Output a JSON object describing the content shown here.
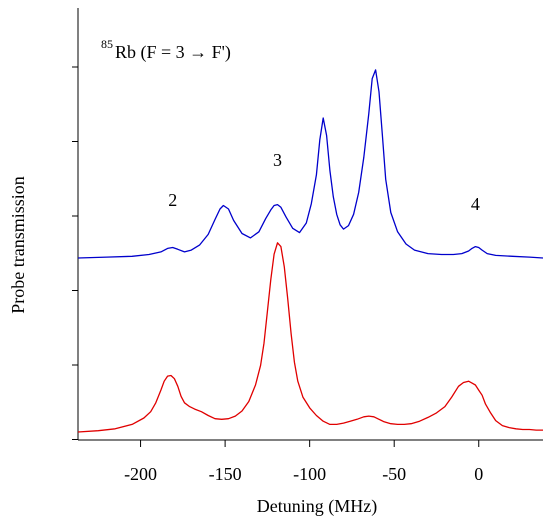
{
  "chart_data": {
    "type": "line",
    "title": "",
    "annotation": {
      "isotope_sup": "85",
      "label": "Rb (F = 3 → F')"
    },
    "xlabel": "Detuning (MHz)",
    "ylabel": "Probe transmission",
    "xlim": [
      -237,
      38
    ],
    "xticks": [
      -200,
      -150,
      -100,
      -50,
      0
    ],
    "xtick_labels": [
      "-200",
      "-150",
      "-100",
      "-50",
      "0"
    ],
    "yticks_count": 6,
    "grid": false,
    "legend": "none",
    "peak_labels": [
      {
        "text": "2",
        "x": -181
      },
      {
        "text": "3",
        "x": -119
      },
      {
        "text": "4",
        "x": -2
      }
    ],
    "series": [
      {
        "color": "#0000cc",
        "x": [
          -237,
          -220,
          -205,
          -195,
          -188,
          -184,
          -181,
          -178,
          -174,
          -170,
          -165,
          -160,
          -156,
          -153,
          -151,
          -148,
          -145,
          -140,
          -135,
          -130,
          -126,
          -123,
          -121,
          -119,
          -117,
          -114,
          -110,
          -106,
          -102,
          -99,
          -96,
          -94,
          -92,
          -90,
          -88,
          -86,
          -84,
          -82,
          -80,
          -77,
          -74,
          -71,
          -68,
          -65,
          -63,
          -61,
          -59,
          -57,
          -55,
          -52,
          -48,
          -43,
          -38,
          -30,
          -22,
          -15,
          -10,
          -6,
          -4,
          -2,
          0,
          2,
          5,
          10,
          20,
          30,
          38
        ],
        "y": [
          0.0,
          0.01,
          0.02,
          0.04,
          0.07,
          0.11,
          0.12,
          0.1,
          0.07,
          0.09,
          0.15,
          0.27,
          0.44,
          0.56,
          0.6,
          0.56,
          0.43,
          0.28,
          0.23,
          0.3,
          0.45,
          0.55,
          0.6,
          0.61,
          0.58,
          0.47,
          0.34,
          0.29,
          0.4,
          0.62,
          0.95,
          1.35,
          1.6,
          1.4,
          1.0,
          0.7,
          0.5,
          0.38,
          0.33,
          0.37,
          0.5,
          0.75,
          1.15,
          1.65,
          2.05,
          2.15,
          1.9,
          1.4,
          0.9,
          0.52,
          0.3,
          0.16,
          0.09,
          0.05,
          0.04,
          0.04,
          0.05,
          0.08,
          0.11,
          0.13,
          0.12,
          0.09,
          0.05,
          0.03,
          0.02,
          0.01,
          0.0
        ]
      },
      {
        "color": "#e00000",
        "x": [
          -237,
          -225,
          -215,
          -205,
          -198,
          -194,
          -191,
          -188,
          -186,
          -184,
          -182,
          -180,
          -178,
          -176,
          -174,
          -171,
          -168,
          -164,
          -160,
          -156,
          -152,
          -148,
          -144,
          -140,
          -136,
          -132,
          -129,
          -127,
          -125,
          -123,
          -121,
          -119,
          -117,
          -115,
          -113,
          -111,
          -109,
          -107,
          -104,
          -100,
          -96,
          -92,
          -88,
          -84,
          -80,
          -76,
          -72,
          -68,
          -65,
          -62,
          -59,
          -56,
          -52,
          -48,
          -44,
          -40,
          -35,
          -30,
          -25,
          -20,
          -16,
          -12,
          -9,
          -6,
          -4,
          -2,
          0,
          2,
          4,
          7,
          10,
          14,
          18,
          22,
          26,
          30,
          34,
          38
        ],
        "y": [
          0.0,
          0.02,
          0.05,
          0.12,
          0.22,
          0.32,
          0.46,
          0.66,
          0.8,
          0.88,
          0.89,
          0.84,
          0.72,
          0.56,
          0.46,
          0.4,
          0.36,
          0.32,
          0.26,
          0.21,
          0.2,
          0.21,
          0.25,
          0.33,
          0.48,
          0.74,
          1.05,
          1.4,
          1.9,
          2.4,
          2.8,
          2.98,
          2.92,
          2.6,
          2.1,
          1.55,
          1.1,
          0.8,
          0.55,
          0.38,
          0.26,
          0.17,
          0.12,
          0.12,
          0.14,
          0.17,
          0.2,
          0.24,
          0.25,
          0.24,
          0.2,
          0.16,
          0.13,
          0.12,
          0.12,
          0.13,
          0.17,
          0.23,
          0.3,
          0.4,
          0.55,
          0.72,
          0.78,
          0.8,
          0.77,
          0.74,
          0.66,
          0.58,
          0.44,
          0.3,
          0.18,
          0.1,
          0.07,
          0.05,
          0.04,
          0.04,
          0.03,
          0.03
        ]
      }
    ]
  }
}
